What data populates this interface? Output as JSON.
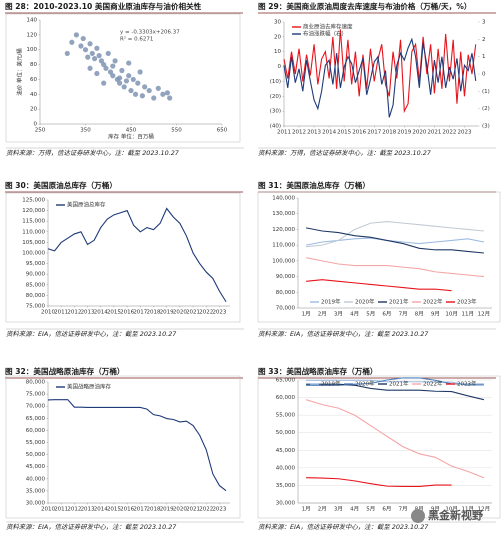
{
  "watermark": "黑金新视野",
  "chart_data": [
    {
      "type": "scatter",
      "title": "图 28：2010-2023.10 美国商业原油库存与油价相关性",
      "note": "资料来源：万得，信达证券研发中心，注：截至 2023.10.27",
      "x_label": "库存 单位：百万桶",
      "y_label": "油价 单位：美元/桶",
      "annotations": [
        "y = -0.3303x+206.37",
        "R² = 0.6271"
      ],
      "color": "#7f93b3",
      "x": [
        310,
        320,
        330,
        340,
        345,
        350,
        355,
        360,
        365,
        370,
        375,
        380,
        385,
        390,
        395,
        400,
        405,
        410,
        415,
        420,
        425,
        430,
        435,
        440,
        445,
        450,
        455,
        460,
        465,
        470,
        475,
        480,
        490,
        500,
        510,
        520,
        530,
        535,
        360,
        375,
        390,
        410,
        425,
        445
      ],
      "y": [
        95,
        110,
        120,
        105,
        115,
        100,
        90,
        108,
        95,
        88,
        102,
        92,
        85,
        80,
        75,
        95,
        70,
        65,
        85,
        60,
        55,
        72,
        50,
        58,
        65,
        45,
        60,
        40,
        55,
        70,
        38,
        50,
        45,
        35,
        48,
        40,
        42,
        35,
        75,
        68,
        55,
        78,
        62,
        82
      ],
      "xlim": [
        250,
        650
      ],
      "xticks": [
        250,
        350,
        450,
        550,
        650
      ],
      "ylim": [
        0,
        140
      ],
      "yticks": [
        0,
        20,
        40,
        60,
        80,
        100,
        120,
        140
      ],
      "grid": false
    },
    {
      "type": "line",
      "title": "图 29：美国商业原油周度去库速度与布油价格（万桶/天，%）",
      "note": "资料来源：万得，信达证券研发中心，注：截至 2023.10.27",
      "x": [
        2011,
        2011.25,
        2011.5,
        2011.75,
        2012,
        2012.25,
        2012.5,
        2012.75,
        2013,
        2013.25,
        2013.5,
        2013.75,
        2014,
        2014.25,
        2014.5,
        2014.75,
        2015,
        2015.25,
        2015.5,
        2015.75,
        2016,
        2016.25,
        2016.5,
        2016.75,
        2017,
        2017.25,
        2017.5,
        2017.75,
        2018,
        2018.25,
        2018.5,
        2018.75,
        2019,
        2019.25,
        2019.5,
        2019.75,
        2020,
        2020.25,
        2020.5,
        2020.75,
        2021,
        2021.25,
        2021.5,
        2021.75,
        2022,
        2022.25,
        2022.5,
        2022.75,
        2023,
        2023.25,
        2023.5,
        2023.75
      ],
      "series": [
        {
          "name": "商业原油去库存速度",
          "color": "#e8141c",
          "values": [
            5,
            -8,
            10,
            -5,
            12,
            -10,
            8,
            -6,
            15,
            -12,
            5,
            10,
            -8,
            20,
            -15,
            25,
            -10,
            18,
            -12,
            10,
            -20,
            8,
            -15,
            12,
            -10,
            5,
            15,
            -12,
            -20,
            10,
            -8,
            18,
            -30,
            -25,
            10,
            15,
            -10,
            20,
            -5,
            15,
            -18,
            12,
            -15,
            22,
            -10,
            18,
            -25,
            10,
            -20,
            8,
            -5,
            15
          ]
        },
        {
          "name": "布油涨跌幅（右）",
          "color": "#1f3a78",
          "axis": "y2",
          "values": [
            0.5,
            -0.8,
            1,
            -0.5,
            0.3,
            -1,
            0.8,
            -0.4,
            -1.5,
            -2,
            -1,
            0.5,
            0.8,
            -0.6,
            1.2,
            -0.8,
            0.4,
            1,
            0.6,
            -0.5,
            0.2,
            0.9,
            -1.2,
            -0.3,
            0.7,
            1,
            -0.6,
            0.2,
            -2.5,
            -1.8,
            0.5,
            1.2,
            0.8,
            1.5,
            2,
            1,
            -0.8,
            1.8,
            0.5,
            -1.2,
            0.8,
            -0.5,
            1,
            -0.8,
            0.4,
            -0.3,
            0.9,
            -1,
            0.5,
            0.2,
            1.2,
            -0.4
          ]
        }
      ],
      "xlim": [
        2011,
        2023.9
      ],
      "xticks": [
        2011,
        2012,
        2013,
        2014,
        2015,
        2016,
        2017,
        2018,
        2019,
        2020,
        2021,
        2022,
        2023
      ],
      "ylim": [
        -40,
        30
      ],
      "yticks": [
        {
          "value": -40,
          "label": "(40)"
        },
        {
          "value": -30,
          "label": "(30)"
        },
        {
          "value": -20,
          "label": "(20)"
        },
        {
          "value": -10,
          "label": "(10)"
        },
        0,
        10,
        20,
        30
      ],
      "y2lim": [
        -3,
        3
      ],
      "y2ticks": [
        {
          "value": -3,
          "label": "(3)"
        },
        {
          "value": -2,
          "label": "(2)"
        },
        {
          "value": -1,
          "label": "(1)"
        },
        0,
        1,
        2,
        3
      ],
      "legend": "top-left",
      "grid": false
    },
    {
      "type": "line",
      "title": "图 30：美国原油总库存（万桶）",
      "note": "资料来源：EIA，信达证券研发中心，注：截至 2023.10.27",
      "x": [
        2010,
        2010.5,
        2011,
        2011.5,
        2012,
        2012.5,
        2013,
        2013.5,
        2014,
        2014.5,
        2015,
        2015.5,
        2016,
        2016.5,
        2017,
        2017.5,
        2018,
        2018.5,
        2019,
        2019.5,
        2020,
        2020.5,
        2021,
        2021.5,
        2022,
        2022.5,
        2023,
        2023.5
      ],
      "series": [
        {
          "name": "美国原油总库存",
          "color": "#1f3a78",
          "values": [
            102000,
            101000,
            105000,
            107000,
            109000,
            110000,
            104000,
            106000,
            112000,
            116000,
            118000,
            119000,
            120000,
            113000,
            110000,
            112000,
            111000,
            114000,
            121000,
            117000,
            114000,
            108000,
            100000,
            95000,
            91000,
            88000,
            82000,
            77000
          ]
        }
      ],
      "xlim": [
        2010,
        2023.8
      ],
      "xticks": [
        2010,
        2011,
        2012,
        2013,
        2014,
        2015,
        2016,
        2017,
        2018,
        2019,
        2020,
        2021,
        2022,
        2023
      ],
      "ylim": [
        75000,
        125000
      ],
      "yticks": [
        {
          "value": 75000,
          "label": "75,000"
        },
        {
          "value": 80000,
          "label": "80,000"
        },
        {
          "value": 85000,
          "label": "85,000"
        },
        {
          "value": 90000,
          "label": "90,000"
        },
        {
          "value": 95000,
          "label": "95,000"
        },
        {
          "value": 100000,
          "label": "100,000"
        },
        {
          "value": 105000,
          "label": "105,000"
        },
        {
          "value": 110000,
          "label": "110,000"
        },
        {
          "value": 115000,
          "label": "115,000"
        },
        {
          "value": 120000,
          "label": "120,000"
        },
        {
          "value": 125000,
          "label": "125,000"
        }
      ],
      "legend": "top-left",
      "grid": false
    },
    {
      "type": "line",
      "title": "图 31：美国原油总库存（万桶）",
      "note": "资料来源：EIA，信达证券研发中心，注：截至 2023.10.27",
      "categories": [
        "1月",
        "2月",
        "3月",
        "4月",
        "5月",
        "6月",
        "7月",
        "8月",
        "9月",
        "10月",
        "11月",
        "12月"
      ],
      "series": [
        {
          "name": "2019年",
          "color": "#9dbbe0",
          "values": [
            110000,
            112000,
            113000,
            114000,
            114500,
            113000,
            112000,
            111000,
            112000,
            113000,
            114000,
            112000
          ]
        },
        {
          "name": "2020年",
          "color": "#c3cad6",
          "values": [
            109000,
            110000,
            113000,
            120000,
            124000,
            125000,
            124000,
            123000,
            122000,
            121000,
            120000,
            119000
          ]
        },
        {
          "name": "2021年",
          "color": "#1f3864",
          "values": [
            121000,
            119000,
            118000,
            116000,
            115000,
            113000,
            111000,
            108000,
            107000,
            107000,
            106000,
            105000
          ]
        },
        {
          "name": "2022年",
          "color": "#f4a6a6",
          "values": [
            102000,
            100000,
            98000,
            97000,
            97000,
            97000,
            96000,
            95000,
            93000,
            92000,
            91000,
            90000
          ]
        },
        {
          "name": "2023年",
          "color": "#e8141c",
          "values": [
            87000,
            88000,
            87000,
            86000,
            85000,
            84000,
            83000,
            82000,
            82000,
            81000,
            null,
            null
          ]
        }
      ],
      "ylim": [
        70000,
        140000
      ],
      "yticks": [
        {
          "value": 70000,
          "label": "70,000"
        },
        {
          "value": 80000,
          "label": "80,000"
        },
        {
          "value": 90000,
          "label": "90,000"
        },
        {
          "value": 100000,
          "label": "100,000"
        },
        {
          "value": 110000,
          "label": "110,000"
        },
        {
          "value": 120000,
          "label": "120,000"
        },
        {
          "value": 130000,
          "label": "130,000"
        },
        {
          "value": 140000,
          "label": "140,000"
        }
      ],
      "legend": "bottom",
      "grid": false
    },
    {
      "type": "line",
      "title": "图 32：美国战略原油库存（万桶）",
      "note": "资料来源：EIA，信达证券研发中心，注：截至 2023.10.27",
      "x": [
        2010,
        2010.5,
        2011,
        2011.5,
        2012,
        2012.5,
        2013,
        2013.5,
        2014,
        2014.5,
        2015,
        2015.5,
        2016,
        2016.5,
        2017,
        2017.5,
        2018,
        2018.5,
        2019,
        2019.5,
        2020,
        2020.5,
        2021,
        2021.5,
        2022,
        2022.5,
        2023,
        2023.5
      ],
      "series": [
        {
          "name": "美国战略原油库存",
          "color": "#1f3a78",
          "values": [
            72600,
            72700,
            72700,
            72700,
            69600,
            69600,
            69500,
            69500,
            69500,
            69500,
            69500,
            69500,
            69500,
            69500,
            69500,
            68800,
            66500,
            66000,
            64900,
            64500,
            63500,
            63800,
            62000,
            58000,
            52000,
            42000,
            37200,
            35100
          ]
        }
      ],
      "xlim": [
        2010,
        2023.8
      ],
      "xticks": [
        2010,
        2011,
        2012,
        2013,
        2014,
        2015,
        2016,
        2017,
        2018,
        2019,
        2020,
        2021,
        2022,
        2023
      ],
      "ylim": [
        30000,
        80000
      ],
      "yticks": [
        {
          "value": 30000,
          "label": "30,000"
        },
        {
          "value": 35000,
          "label": "35,000"
        },
        {
          "value": 40000,
          "label": "40,000"
        },
        {
          "value": 45000,
          "label": "45,000"
        },
        {
          "value": 50000,
          "label": "50,000"
        },
        {
          "value": 55000,
          "label": "55,000"
        },
        {
          "value": 60000,
          "label": "60,000"
        },
        {
          "value": 65000,
          "label": "65,000"
        },
        {
          "value": 70000,
          "label": "70,000"
        },
        {
          "value": 75000,
          "label": "75,000"
        },
        {
          "value": 80000,
          "label": "80,000"
        }
      ],
      "legend": "top-left",
      "grid": false
    },
    {
      "type": "line",
      "title": "图 33：美国战略原油库存（万桶）",
      "note": "资料来源：EIA，信达证券研发中心，注：截至 2023.10.27",
      "categories": [
        "1月",
        "2月",
        "3月",
        "4月",
        "5月",
        "6月",
        "7月",
        "8月",
        "9月",
        "10月",
        "11月",
        "12月"
      ],
      "series": [
        {
          "name": "2019年",
          "color": "#9dbbe0",
          "values": [
            64900,
            64900,
            64900,
            64900,
            64900,
            64500,
            64500,
            64500,
            64400,
            64400,
            63500,
            63500
          ]
        },
        {
          "name": "2020年",
          "color": "#4f81bd",
          "values": [
            63500,
            63500,
            63500,
            63800,
            64000,
            65000,
            65600,
            65600,
            64900,
            63900,
            63800,
            63800
          ]
        },
        {
          "name": "2021年",
          "color": "#1f3864",
          "values": [
            63800,
            63800,
            63800,
            63500,
            62600,
            62100,
            62100,
            62100,
            61800,
            61700,
            60500,
            59400
          ]
        },
        {
          "name": "2022年",
          "color": "#f4a6a6",
          "values": [
            59400,
            58000,
            57000,
            55000,
            52000,
            49000,
            46000,
            44000,
            43000,
            40500,
            39000,
            37200
          ]
        },
        {
          "name": "2023年",
          "color": "#e8141c",
          "values": [
            37200,
            37100,
            36900,
            36300,
            35500,
            34800,
            34700,
            34700,
            35100,
            35100,
            null,
            null
          ]
        }
      ],
      "ylim": [
        30000,
        65000
      ],
      "yticks": [
        {
          "value": 30000,
          "label": "30,000"
        },
        {
          "value": 35000,
          "label": "35,000"
        },
        {
          "value": 40000,
          "label": "40,000"
        },
        {
          "value": 45000,
          "label": "45,000"
        },
        {
          "value": 50000,
          "label": "50,000"
        },
        {
          "value": 55000,
          "label": "55,000"
        },
        {
          "value": 60000,
          "label": "60,000"
        },
        {
          "value": 65000,
          "label": "65,000"
        }
      ],
      "legend": "top",
      "grid": true
    }
  ]
}
